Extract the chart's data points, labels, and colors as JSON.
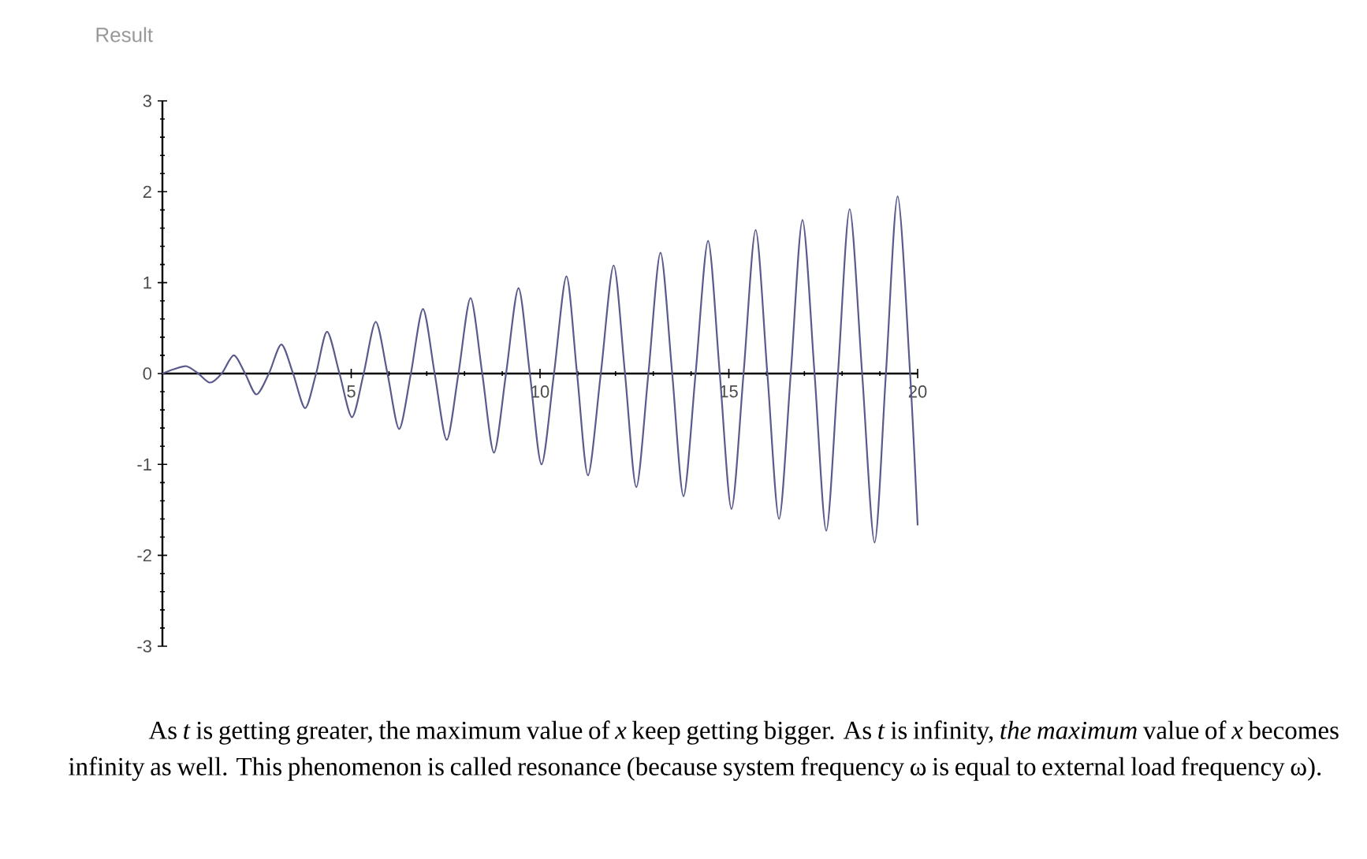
{
  "chart_data": {
    "type": "line",
    "title": "Result",
    "annotations": [
      "As *t* is getting greater, the maximum value of *x* keep getting bigger. As *t* is infinity, *the maximum* value of *x* becomes infinity as well. This phenomenon is called resonance (because system frequency ω is equal to external load frequency ω)."
    ],
    "x": [
      0,
      0.32,
      0.64,
      0.95,
      1.26,
      1.57,
      1.89,
      2.19,
      2.49,
      2.82,
      3.15,
      3.46,
      3.78,
      4.07,
      4.36,
      4.69,
      5.02,
      5.33,
      5.65,
      5.96,
      6.27,
      6.58,
      6.9,
      7.21,
      7.53,
      7.84,
      8.16,
      8.47,
      8.78,
      9.1,
      9.43,
      9.73,
      10.04,
      10.37,
      10.7,
      10.98,
      11.27,
      11.61,
      11.95,
      12.25,
      12.55,
      12.87,
      13.19,
      13.5,
      13.8,
      14.12,
      14.45,
      14.76,
      15.07,
      15.39,
      15.71,
      16.02,
      16.33,
      16.64,
      16.95,
      17.27,
      17.58,
      17.89,
      18.2,
      18.53,
      18.86,
      19.16,
      19.47,
      19.8,
      20
    ],
    "series": [
      {
        "color": "#5a5a8c",
        "values": [
          0,
          0.05,
          0.08,
          0,
          -0.1,
          0,
          0.2,
          0,
          -0.23,
          0,
          0.32,
          0,
          -0.38,
          0,
          0.46,
          0,
          -0.48,
          0,
          0.57,
          0,
          -0.61,
          0,
          0.71,
          0,
          -0.73,
          0,
          0.83,
          0,
          -0.87,
          0,
          0.94,
          0,
          -1.0,
          0,
          1.07,
          0,
          -1.12,
          0,
          1.19,
          0,
          -1.25,
          0,
          1.33,
          0,
          -1.35,
          0,
          1.46,
          0,
          -1.49,
          0,
          1.58,
          0,
          -1.6,
          0,
          1.69,
          0,
          -1.73,
          0,
          1.81,
          0,
          -1.86,
          0,
          1.95,
          0,
          -1.67
        ]
      }
    ],
    "xlim": [
      0,
      20
    ],
    "ylim": [
      -3,
      3
    ],
    "xticks": [
      5,
      10,
      15,
      20
    ],
    "yticks": [
      -3,
      -2,
      -1,
      0,
      1,
      2,
      3
    ]
  }
}
